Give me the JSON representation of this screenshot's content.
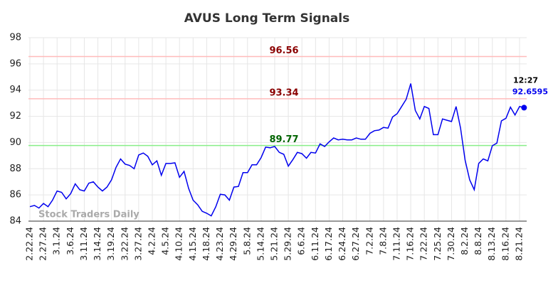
{
  "chart_data": {
    "type": "line",
    "title": "AVUS Long Term Signals",
    "watermark": "Stock Traders Daily",
    "time_label": "12:27",
    "categories": [
      "2.22.24",
      null,
      null,
      "2.27.24",
      null,
      null,
      "3.1.24",
      null,
      null,
      "3.6.24",
      null,
      null,
      "3.11.24",
      null,
      null,
      "3.14.24",
      null,
      null,
      "3.19.24",
      null,
      null,
      "3.22.24",
      null,
      null,
      "3.27.24",
      null,
      null,
      "4.2.24",
      null,
      null,
      "4.5.24",
      null,
      null,
      "4.10.24",
      null,
      null,
      "4.15.24",
      null,
      null,
      "4.18.24",
      null,
      null,
      "4.23.24",
      null,
      null,
      "4.29.24",
      null,
      null,
      "5.8.24",
      null,
      null,
      "5.14.24",
      null,
      null,
      "5.21.24",
      null,
      null,
      "5.29.24",
      null,
      null,
      "6.6.24",
      null,
      null,
      "6.11.24",
      null,
      null,
      "6.17.24",
      null,
      null,
      "6.24.24",
      null,
      null,
      "6.27.24",
      null,
      null,
      "7.2.24",
      null,
      null,
      "7.8.24",
      null,
      null,
      "7.11.24",
      null,
      null,
      "7.16.24",
      null,
      null,
      "7.22.24",
      null,
      null,
      "7.25.24",
      null,
      null,
      "7.30.24",
      null,
      null,
      "8.2.24",
      null,
      null,
      "8.8.24",
      null,
      null,
      "8.13.24",
      null,
      null,
      "8.16.24",
      null,
      null,
      "8.21.24",
      null
    ],
    "series": [
      {
        "name": "AVUS",
        "color": "#0000ee",
        "values": [
          85.1,
          85.2,
          85.0,
          85.35,
          85.1,
          85.6,
          86.3,
          86.2,
          85.7,
          86.1,
          86.85,
          86.4,
          86.3,
          86.9,
          87.0,
          86.6,
          86.3,
          86.6,
          87.15,
          88.1,
          88.75,
          88.35,
          88.25,
          88.0,
          89.05,
          89.2,
          88.95,
          88.3,
          88.6,
          87.5,
          88.4,
          88.4,
          88.45,
          87.35,
          87.8,
          86.5,
          85.6,
          85.25,
          84.75,
          84.6,
          84.4,
          85.1,
          86.05,
          86.0,
          85.6,
          86.6,
          86.65,
          87.7,
          87.7,
          88.3,
          88.3,
          88.85,
          89.65,
          89.6,
          89.7,
          89.25,
          89.1,
          88.2,
          88.7,
          89.25,
          89.15,
          88.8,
          89.25,
          89.2,
          89.9,
          89.7,
          90.05,
          90.35,
          90.2,
          90.25,
          90.2,
          90.2,
          90.35,
          90.25,
          90.25,
          90.7,
          90.9,
          90.95,
          91.15,
          91.1,
          91.95,
          92.2,
          92.75,
          93.3,
          94.5,
          92.45,
          91.8,
          92.75,
          92.6,
          90.6,
          90.6,
          91.8,
          91.7,
          91.6,
          92.75,
          91.1,
          88.65,
          87.15,
          86.4,
          88.4,
          88.75,
          88.6,
          89.75,
          89.95,
          91.65,
          91.85,
          92.7,
          92.1,
          92.75,
          92.6595
        ]
      }
    ],
    "reference_lines": [
      {
        "value": 96.56,
        "color": "#ffbbbb",
        "label_color": "#8b0000"
      },
      {
        "value": 93.34,
        "color": "#ffbbbb",
        "label_color": "#8b0000"
      },
      {
        "value": 89.77,
        "color": "#88ee88",
        "label_color": "#006400"
      }
    ],
    "ylim": [
      84,
      98
    ],
    "yticks": [
      84,
      86,
      88,
      90,
      92,
      94,
      96,
      98
    ],
    "grid": true
  }
}
